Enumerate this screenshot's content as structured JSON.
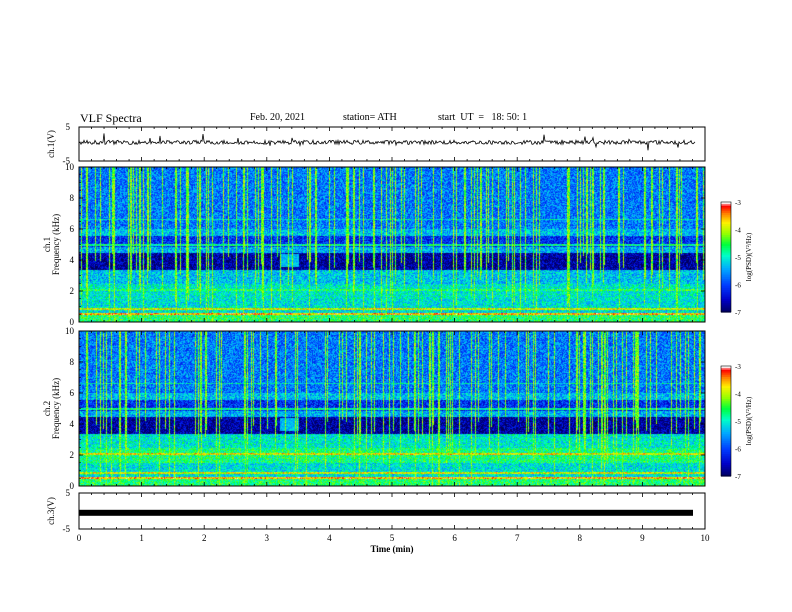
{
  "header": {
    "title": "VLF Spectra",
    "date": "Feb. 20, 2021",
    "station": "station= ATH",
    "start": "start  UT  =   18: 50: 1"
  },
  "chart_data": [
    {
      "type": "line",
      "panel": "ch1-waveform",
      "ylabel": "ch.1(V)",
      "ylim": [
        -5,
        5
      ],
      "yticks": [
        5,
        -5
      ],
      "xlim": [
        0,
        10
      ],
      "baseline_V": 0.5
    },
    {
      "type": "heatmap",
      "panel": "ch1-spectrogram",
      "ylabel_line1": "ch.1",
      "ylabel_line2": "Frequency (kHz)",
      "ylim": [
        0,
        10
      ],
      "yticks": [
        0,
        2,
        4,
        6,
        8,
        10
      ],
      "xlim": [
        0,
        10
      ],
      "colorbar": {
        "label": "log(PSD)(V²/Hz)",
        "range": [
          -7,
          -3
        ],
        "ticks": [
          -7,
          -6,
          -5,
          -4,
          -3
        ],
        "colors": [
          "#000080",
          "#0000ff",
          "#00aaff",
          "#00ffcc",
          "#00ff00",
          "#aaff00",
          "#ffff00",
          "#ff8800",
          "#ff0000",
          "#ffffff"
        ]
      }
    },
    {
      "type": "heatmap",
      "panel": "ch2-spectrogram",
      "ylabel_line1": "ch.2",
      "ylabel_line2": "Frequency (kHz)",
      "ylim": [
        0,
        10
      ],
      "yticks": [
        0,
        2,
        4,
        6,
        8,
        10
      ],
      "xlim": [
        0,
        10
      ],
      "colorbar": {
        "label": "log(PSD)(V²/Hz)",
        "range": [
          -7,
          -3
        ],
        "ticks": [
          -7,
          -6,
          -5,
          -4,
          -3
        ],
        "colors": [
          "#000080",
          "#0000ff",
          "#00aaff",
          "#00ffcc",
          "#00ff00",
          "#aaff00",
          "#ffff00",
          "#ff8800",
          "#ff0000",
          "#ffffff"
        ]
      }
    },
    {
      "type": "line",
      "panel": "ch3-waveform",
      "ylabel": "ch.3(V)",
      "ylim": [
        -5,
        5
      ],
      "yticks": [
        5,
        -5
      ],
      "xlim": [
        0,
        10
      ],
      "baseline_V": -0.5,
      "xlabel": "Time  (min)",
      "xticks": [
        0,
        1,
        2,
        3,
        4,
        5,
        6,
        7,
        8,
        9,
        10
      ]
    }
  ]
}
